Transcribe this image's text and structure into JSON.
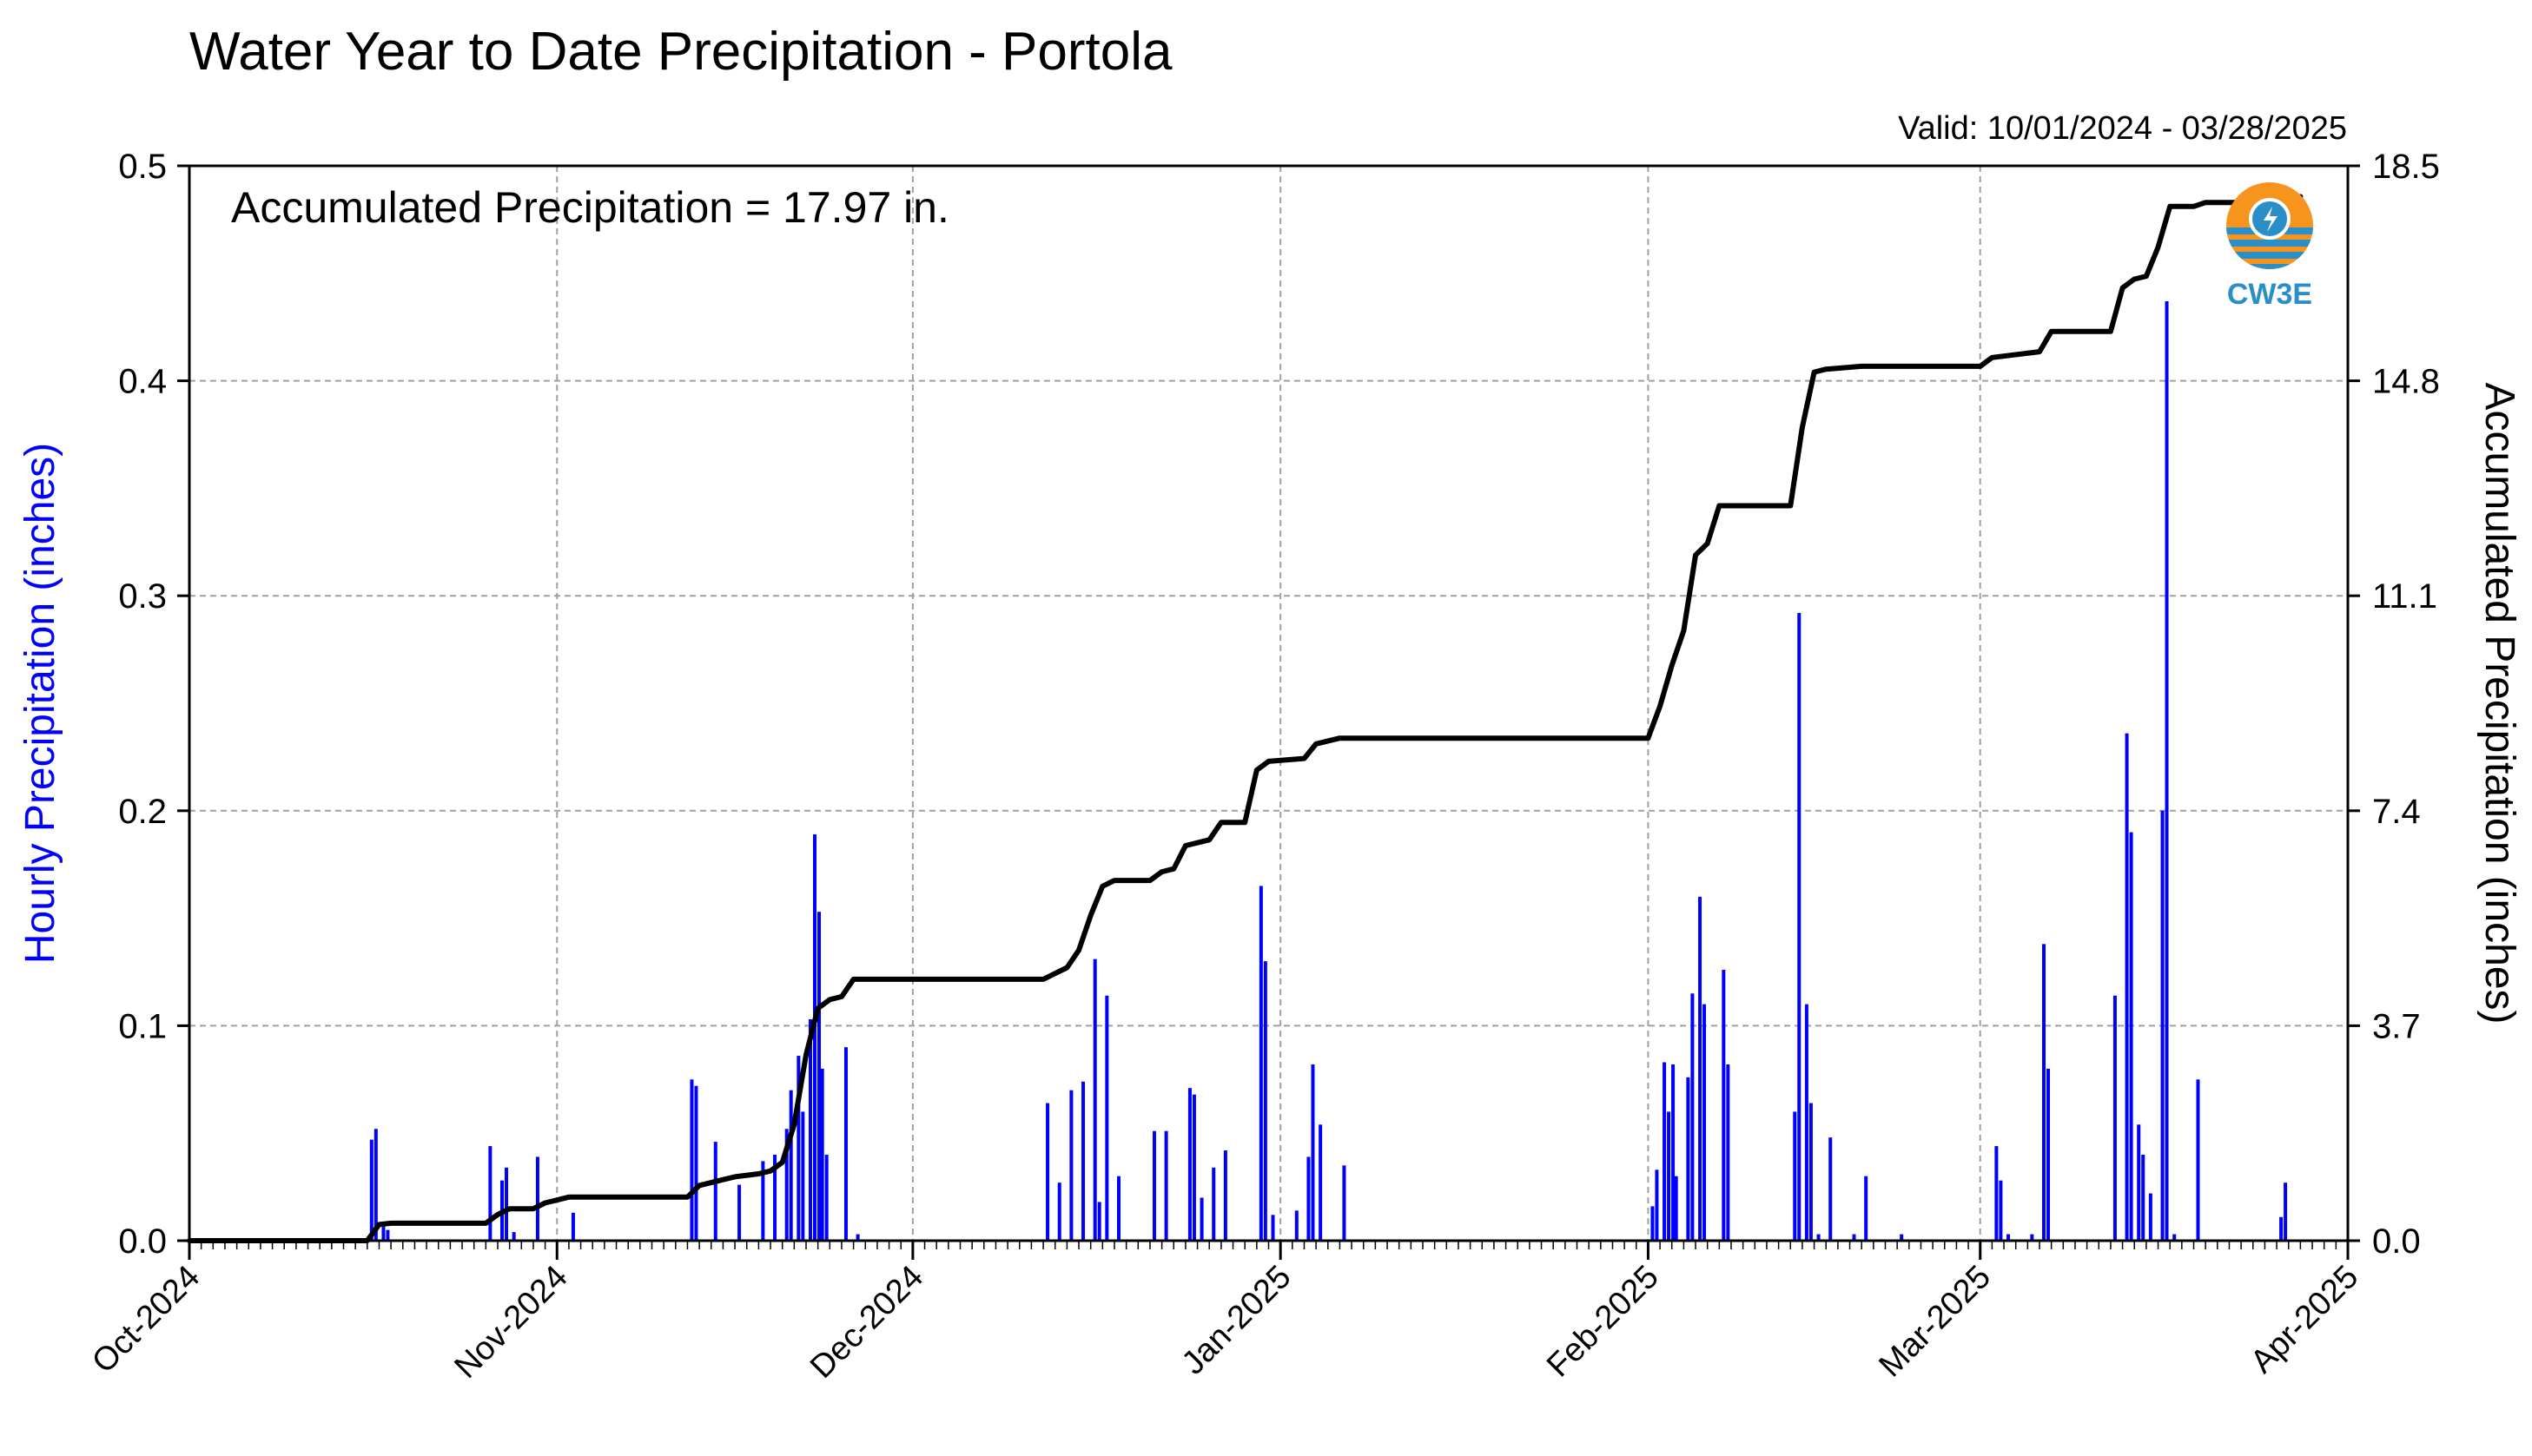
{
  "chart_data": {
    "type": "bar",
    "title": "Water Year to Date Precipitation - Portola",
    "valid": "Valid: 10/01/2024 - 03/28/2025",
    "annotation": "Accumulated Precipitation = 17.97 in.",
    "ylabel_left": "Hourly Precipitation (inches)",
    "ylabel_right": "Accumulated Precipitation (inches)",
    "xlim": [
      "2024-10-01",
      "2025-04-01"
    ],
    "ylim_left": [
      0,
      0.5
    ],
    "ylim_right": [
      0,
      18.5
    ],
    "yticks_left": [
      "0.0",
      "0.1",
      "0.2",
      "0.3",
      "0.4",
      "0.5"
    ],
    "yticks_right": [
      "0.0",
      "3.7",
      "7.4",
      "11.1",
      "14.8",
      "18.5"
    ],
    "xtick_labels": [
      "Oct-2024",
      "Nov-2024",
      "Dec-2024",
      "Jan-2025",
      "Feb-2025",
      "Mar-2025",
      "Apr-2025"
    ],
    "grid": true,
    "colors": {
      "hourly": "#0000ff",
      "accumulated": "#000000",
      "logo_orange": "#f7941d",
      "logo_blue": "#2a8fc9"
    },
    "logo_text": "CW3E",
    "series": [
      {
        "type": "bar",
        "axis": "left",
        "values": [
          {
            "date": "2024-10-16",
            "v": 0.047
          },
          {
            "date": "2024-10-16",
            "v": 0.052
          },
          {
            "date": "2024-10-17",
            "v": 0.007
          },
          {
            "date": "2024-10-17",
            "v": 0.005
          },
          {
            "date": "2024-10-26",
            "v": 0.044
          },
          {
            "date": "2024-10-27",
            "v": 0.028
          },
          {
            "date": "2024-10-27",
            "v": 0.034
          },
          {
            "date": "2024-10-28",
            "v": 0.004
          },
          {
            "date": "2024-10-30",
            "v": 0.039
          },
          {
            "date": "2024-11-02",
            "v": 0.013
          },
          {
            "date": "2024-11-12",
            "v": 0.075
          },
          {
            "date": "2024-11-12",
            "v": 0.072
          },
          {
            "date": "2024-11-14",
            "v": 0.046
          },
          {
            "date": "2024-11-16",
            "v": 0.026
          },
          {
            "date": "2024-11-18",
            "v": 0.037
          },
          {
            "date": "2024-11-19",
            "v": 0.04
          },
          {
            "date": "2024-11-20",
            "v": 0.052
          },
          {
            "date": "2024-11-20",
            "v": 0.07
          },
          {
            "date": "2024-11-21",
            "v": 0.086
          },
          {
            "date": "2024-11-21",
            "v": 0.06
          },
          {
            "date": "2024-11-22",
            "v": 0.103
          },
          {
            "date": "2024-11-22",
            "v": 0.189
          },
          {
            "date": "2024-11-22",
            "v": 0.153
          },
          {
            "date": "2024-11-23",
            "v": 0.08
          },
          {
            "date": "2024-11-23",
            "v": 0.04
          },
          {
            "date": "2024-11-25",
            "v": 0.09
          },
          {
            "date": "2024-11-26",
            "v": 0.003
          },
          {
            "date": "2024-12-12",
            "v": 0.064
          },
          {
            "date": "2024-12-13",
            "v": 0.027
          },
          {
            "date": "2024-12-14",
            "v": 0.07
          },
          {
            "date": "2024-12-15",
            "v": 0.074
          },
          {
            "date": "2024-12-16",
            "v": 0.131
          },
          {
            "date": "2024-12-16",
            "v": 0.018
          },
          {
            "date": "2024-12-17",
            "v": 0.114
          },
          {
            "date": "2024-12-18",
            "v": 0.03
          },
          {
            "date": "2024-12-21",
            "v": 0.051
          },
          {
            "date": "2024-12-22",
            "v": 0.051
          },
          {
            "date": "2024-12-24",
            "v": 0.071
          },
          {
            "date": "2024-12-24",
            "v": 0.068
          },
          {
            "date": "2024-12-25",
            "v": 0.02
          },
          {
            "date": "2024-12-26",
            "v": 0.034
          },
          {
            "date": "2024-12-27",
            "v": 0.042
          },
          {
            "date": "2024-12-30",
            "v": 0.165
          },
          {
            "date": "2024-12-30",
            "v": 0.13
          },
          {
            "date": "2024-12-31",
            "v": 0.012
          },
          {
            "date": "2025-01-02",
            "v": 0.014
          },
          {
            "date": "2025-01-03",
            "v": 0.039
          },
          {
            "date": "2025-01-03",
            "v": 0.082
          },
          {
            "date": "2025-01-04",
            "v": 0.054
          },
          {
            "date": "2025-01-06",
            "v": 0.035
          },
          {
            "date": "2025-02-01",
            "v": 0.016
          },
          {
            "date": "2025-02-01",
            "v": 0.033
          },
          {
            "date": "2025-02-02",
            "v": 0.083
          },
          {
            "date": "2025-02-02",
            "v": 0.06
          },
          {
            "date": "2025-02-02",
            "v": 0.082
          },
          {
            "date": "2025-02-03",
            "v": 0.03
          },
          {
            "date": "2025-02-04",
            "v": 0.076
          },
          {
            "date": "2025-02-04",
            "v": 0.115
          },
          {
            "date": "2025-02-05",
            "v": 0.16
          },
          {
            "date": "2025-02-05",
            "v": 0.11
          },
          {
            "date": "2025-02-07",
            "v": 0.126
          },
          {
            "date": "2025-02-07",
            "v": 0.082
          },
          {
            "date": "2025-02-13",
            "v": 0.06
          },
          {
            "date": "2025-02-13",
            "v": 0.292
          },
          {
            "date": "2025-02-14",
            "v": 0.11
          },
          {
            "date": "2025-02-14",
            "v": 0.064
          },
          {
            "date": "2025-02-15",
            "v": 0.003
          },
          {
            "date": "2025-02-16",
            "v": 0.048
          },
          {
            "date": "2025-02-18",
            "v": 0.003
          },
          {
            "date": "2025-02-19",
            "v": 0.03
          },
          {
            "date": "2025-02-22",
            "v": 0.003
          },
          {
            "date": "2025-03-02",
            "v": 0.044
          },
          {
            "date": "2025-03-02",
            "v": 0.028
          },
          {
            "date": "2025-03-03",
            "v": 0.003
          },
          {
            "date": "2025-03-05",
            "v": 0.003
          },
          {
            "date": "2025-03-06",
            "v": 0.138
          },
          {
            "date": "2025-03-06",
            "v": 0.08
          },
          {
            "date": "2025-03-12",
            "v": 0.114
          },
          {
            "date": "2025-03-13",
            "v": 0.236
          },
          {
            "date": "2025-03-13",
            "v": 0.19
          },
          {
            "date": "2025-03-14",
            "v": 0.054
          },
          {
            "date": "2025-03-14",
            "v": 0.04
          },
          {
            "date": "2025-03-15",
            "v": 0.022
          },
          {
            "date": "2025-03-16",
            "v": 0.2
          },
          {
            "date": "2025-03-16",
            "v": 0.437
          },
          {
            "date": "2025-03-17",
            "v": 0.003
          },
          {
            "date": "2025-03-19",
            "v": 0.075
          },
          {
            "date": "2025-03-26",
            "v": 0.011
          },
          {
            "date": "2025-03-26",
            "v": 0.027
          }
        ]
      },
      {
        "type": "line",
        "axis": "right",
        "points": [
          {
            "date": "2024-10-01",
            "v": 0.0
          },
          {
            "date": "2024-10-16",
            "v": 0.0
          },
          {
            "date": "2024-10-17",
            "v": 0.28
          },
          {
            "date": "2024-10-18",
            "v": 0.3
          },
          {
            "date": "2024-10-26",
            "v": 0.3
          },
          {
            "date": "2024-10-27",
            "v": 0.45
          },
          {
            "date": "2024-10-28",
            "v": 0.55
          },
          {
            "date": "2024-10-30",
            "v": 0.55
          },
          {
            "date": "2024-10-31",
            "v": 0.65
          },
          {
            "date": "2024-11-02",
            "v": 0.75
          },
          {
            "date": "2024-11-12",
            "v": 0.75
          },
          {
            "date": "2024-11-13",
            "v": 0.95
          },
          {
            "date": "2024-11-14",
            "v": 1.0
          },
          {
            "date": "2024-11-15",
            "v": 1.05
          },
          {
            "date": "2024-11-16",
            "v": 1.1
          },
          {
            "date": "2024-11-18",
            "v": 1.15
          },
          {
            "date": "2024-11-19",
            "v": 1.2
          },
          {
            "date": "2024-11-20",
            "v": 1.35
          },
          {
            "date": "2024-11-21",
            "v": 2.0
          },
          {
            "date": "2024-11-22",
            "v": 3.2
          },
          {
            "date": "2024-11-23",
            "v": 4.0
          },
          {
            "date": "2024-11-24",
            "v": 4.15
          },
          {
            "date": "2024-11-25",
            "v": 4.2
          },
          {
            "date": "2024-11-26",
            "v": 4.5
          },
          {
            "date": "2024-12-12",
            "v": 4.5
          },
          {
            "date": "2024-12-13",
            "v": 4.6
          },
          {
            "date": "2024-12-14",
            "v": 4.7
          },
          {
            "date": "2024-12-15",
            "v": 5.0
          },
          {
            "date": "2024-12-16",
            "v": 5.6
          },
          {
            "date": "2024-12-17",
            "v": 6.1
          },
          {
            "date": "2024-12-18",
            "v": 6.2
          },
          {
            "date": "2024-12-21",
            "v": 6.2
          },
          {
            "date": "2024-12-22",
            "v": 6.35
          },
          {
            "date": "2024-12-23",
            "v": 6.4
          },
          {
            "date": "2024-12-24",
            "v": 6.8
          },
          {
            "date": "2024-12-26",
            "v": 6.9
          },
          {
            "date": "2024-12-27",
            "v": 7.2
          },
          {
            "date": "2024-12-29",
            "v": 7.2
          },
          {
            "date": "2024-12-30",
            "v": 8.1
          },
          {
            "date": "2024-12-31",
            "v": 8.25
          },
          {
            "date": "2025-01-03",
            "v": 8.3
          },
          {
            "date": "2025-01-04",
            "v": 8.55
          },
          {
            "date": "2025-01-06",
            "v": 8.65
          },
          {
            "date": "2025-02-01",
            "v": 8.65
          },
          {
            "date": "2025-02-02",
            "v": 9.2
          },
          {
            "date": "2025-02-03",
            "v": 9.9
          },
          {
            "date": "2025-02-04",
            "v": 10.5
          },
          {
            "date": "2025-02-05",
            "v": 11.8
          },
          {
            "date": "2025-02-06",
            "v": 12.0
          },
          {
            "date": "2025-02-07",
            "v": 12.65
          },
          {
            "date": "2025-02-13",
            "v": 12.65
          },
          {
            "date": "2025-02-14",
            "v": 14.0
          },
          {
            "date": "2025-02-15",
            "v": 14.95
          },
          {
            "date": "2025-02-16",
            "v": 15.0
          },
          {
            "date": "2025-02-19",
            "v": 15.05
          },
          {
            "date": "2025-03-01",
            "v": 15.05
          },
          {
            "date": "2025-03-02",
            "v": 15.2
          },
          {
            "date": "2025-03-06",
            "v": 15.3
          },
          {
            "date": "2025-03-07",
            "v": 15.65
          },
          {
            "date": "2025-03-12",
            "v": 15.65
          },
          {
            "date": "2025-03-13",
            "v": 16.4
          },
          {
            "date": "2025-03-14",
            "v": 16.55
          },
          {
            "date": "2025-03-15",
            "v": 16.6
          },
          {
            "date": "2025-03-16",
            "v": 17.1
          },
          {
            "date": "2025-03-17",
            "v": 17.8
          },
          {
            "date": "2025-03-19",
            "v": 17.8
          },
          {
            "date": "2025-03-20",
            "v": 17.87
          },
          {
            "date": "2025-03-26",
            "v": 17.87
          },
          {
            "date": "2025-03-27",
            "v": 17.97
          },
          {
            "date": "2025-03-28",
            "v": 17.97
          }
        ]
      }
    ]
  }
}
